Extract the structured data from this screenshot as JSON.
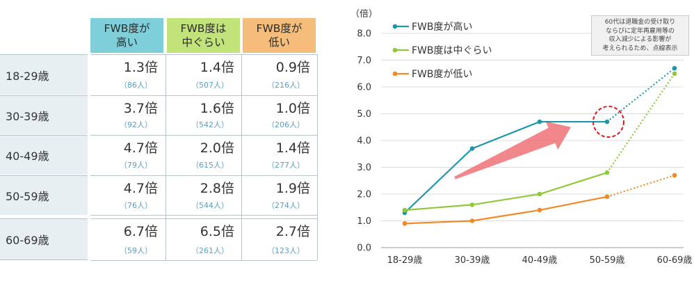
{
  "table": {
    "headers": [
      "FWB度が\n高い",
      "FWB度は\n中ぐらい",
      "FWB度が\n低い"
    ],
    "rows": [
      {
        "label": "18-29歳",
        "cells": [
          {
            "value": "1.3倍",
            "n": "（86人）"
          },
          {
            "value": "1.4倍",
            "n": "（507人）"
          },
          {
            "value": "0.9倍",
            "n": "（216人）"
          }
        ]
      },
      {
        "label": "30-39歳",
        "cells": [
          {
            "value": "3.7倍",
            "n": "（92人）"
          },
          {
            "value": "1.6倍",
            "n": "（542人）"
          },
          {
            "value": "1.0倍",
            "n": "（206人）"
          }
        ]
      },
      {
        "label": "40-49歳",
        "cells": [
          {
            "value": "4.7倍",
            "n": "（79人）"
          },
          {
            "value": "2.0倍",
            "n": "（615人）"
          },
          {
            "value": "1.4倍",
            "n": "（277人）"
          }
        ]
      },
      {
        "label": "50-59歳",
        "cells": [
          {
            "value": "4.7倍",
            "n": "（76人）"
          },
          {
            "value": "2.8倍",
            "n": "（544人）"
          },
          {
            "value": "1.9倍",
            "n": "（274人）"
          }
        ]
      },
      {
        "label": "60-69歳",
        "cells": [
          {
            "value": "6.7倍",
            "n": "（59人）"
          },
          {
            "value": "6.5倍",
            "n": "（261人）"
          },
          {
            "value": "2.7倍",
            "n": "（123人）"
          }
        ]
      }
    ]
  },
  "chart_data": {
    "type": "line",
    "ylabel": "（倍）",
    "ylim": [
      0,
      8
    ],
    "yticks": [
      "0.0",
      "1.0",
      "2.0",
      "3.0",
      "4.0",
      "5.0",
      "6.0",
      "7.0",
      "8.0"
    ],
    "categories": [
      "18-29歳",
      "30-39歳",
      "40-49歳",
      "50-59歳",
      "60-69歳"
    ],
    "series": [
      {
        "name": "FWB度が高い",
        "color": "#1f97aa",
        "values": [
          1.3,
          3.7,
          4.7,
          4.7,
          6.7
        ]
      },
      {
        "name": "FWB度は中ぐらい",
        "color": "#8fc93a",
        "values": [
          1.4,
          1.6,
          2.0,
          2.8,
          6.5
        ]
      },
      {
        "name": "FWB度が低い",
        "color": "#f08a24",
        "values": [
          0.9,
          1.0,
          1.4,
          1.9,
          2.7
        ]
      }
    ],
    "dotted_last_segment": true,
    "grid": true,
    "legend_position": "top-left",
    "note": "60代は退職金の受け取り\nならびに定年再雇用等の\n収入減少による影響が\n考えられるため、点線表示",
    "arrow_color": "#ee7276",
    "highlight_circle_color": "#e2141c"
  }
}
